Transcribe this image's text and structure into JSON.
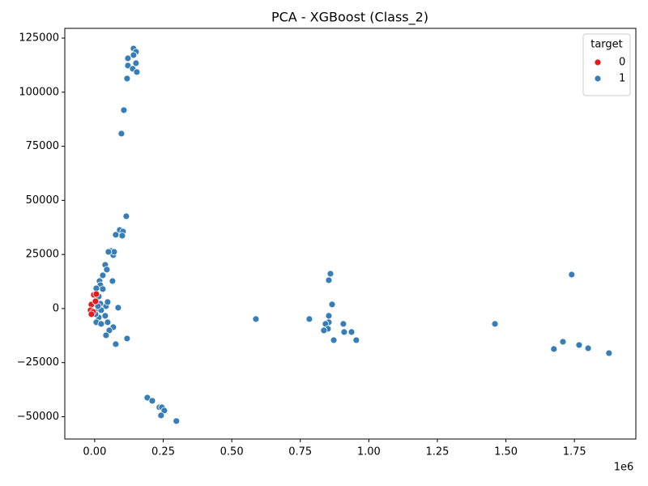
{
  "chart_data": {
    "type": "scatter",
    "title": "PCA - XGBoost (Class_2)",
    "x_offset_label": "1e6",
    "xlim": [
      -109000,
      1974000
    ],
    "ylim": [
      -60300,
      129500
    ],
    "xticks": [
      {
        "value": 0,
        "label": "0.00"
      },
      {
        "value": 250000,
        "label": "0.25"
      },
      {
        "value": 500000,
        "label": "0.50"
      },
      {
        "value": 750000,
        "label": "0.75"
      },
      {
        "value": 1000000,
        "label": "1.00"
      },
      {
        "value": 1250000,
        "label": "1.25"
      },
      {
        "value": 1500000,
        "label": "1.50"
      },
      {
        "value": 1750000,
        "label": "1.75"
      }
    ],
    "yticks": [
      {
        "value": -50000,
        "label": "−50000"
      },
      {
        "value": -25000,
        "label": "−25000"
      },
      0,
      25000,
      50000,
      75000,
      100000,
      125000
    ],
    "legend_title": "target",
    "legend_position": "upper right",
    "series": [
      {
        "name": "1",
        "color": "#377eb8",
        "x": [
          141800,
          150700,
          141800,
          121200,
          150700,
          121200,
          138900,
          153700,
          118200,
          106400,
          97500,
          115200,
          91600,
          103400,
          100500,
          76800,
          59100,
          67900,
          70900,
          50200,
          65000,
          38400,
          44300,
          29600,
          17700,
          20700,
          29600,
          5900,
          14800,
          20700,
          41400,
          47300,
          85700,
          38400,
          14800,
          5900,
          23600,
          47300,
          67900,
          53200,
          41400,
          118200,
          76800,
          8900,
          3000,
          23600,
          11800,
          588000,
          783000,
          860000,
          854000,
          866000,
          854000,
          854000,
          842000,
          851000,
          836000,
          907000,
          910000,
          937000,
          872000,
          954000,
          1460000,
          1740000,
          1708000,
          1675000,
          1767000,
          1800000,
          1876000,
          192000,
          210000,
          236000,
          245000,
          254000,
          242000,
          298000
        ],
        "values": [
          120150,
          118650,
          117150,
          115650,
          113400,
          112300,
          110800,
          109300,
          106300,
          91700,
          80850,
          42650,
          36300,
          35600,
          33700,
          34100,
          26600,
          24700,
          26200,
          26200,
          12700,
          20200,
          18000,
          15350,
          12700,
          10850,
          9000,
          9350,
          5600,
          2250,
          1100,
          3000,
          400,
          -3350,
          -4100,
          -6350,
          -7100,
          -6350,
          -8600,
          -10100,
          -12350,
          -13850,
          -16450,
          -1100,
          -2600,
          -750,
          1100,
          -4850,
          -4850,
          16100,
          13100,
          1900,
          -3350,
          -6350,
          -7100,
          -9350,
          -10100,
          -7100,
          -10850,
          -10850,
          -14600,
          -14600,
          -7100,
          15700,
          -15350,
          -18700,
          -16850,
          -18350,
          -20600,
          -41200,
          -42650,
          -45650,
          -45650,
          -47150,
          -49400,
          -52000
        ]
      },
      {
        "name": "0",
        "color": "#e41a1c",
        "x": [
          -3000,
          5900,
          -11800,
          -14800,
          -5900,
          -11800,
          3000
        ],
        "values": [
          6350,
          6700,
          1850,
          -750,
          -1500,
          -2600,
          3350
        ]
      }
    ]
  }
}
